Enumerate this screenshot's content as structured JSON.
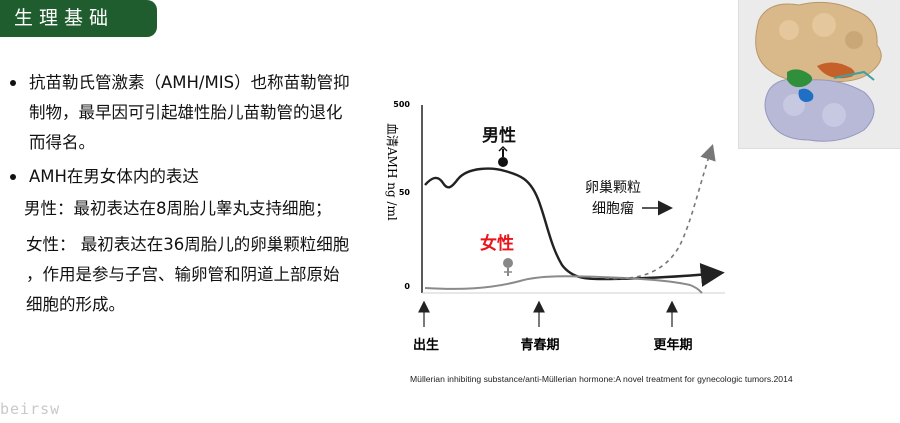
{
  "header": {
    "title": "生理基础"
  },
  "bullets": [
    {
      "text": "抗苗勒氏管激素（AMH/MIS）也称苗勒管抑制物，最早因可引起雄性胎儿苗勒管的退化而得名。",
      "lines": [
        "抗苗勒氏管激素（AMH/MIS）也称苗勒管抑",
        "制物，最早因可引起雄性胎儿苗勒管的退化",
        "而得名。"
      ]
    },
    {
      "text": "AMH在男女体内的表达"
    }
  ],
  "male_line": "男性：最初表达在8周胎儿睾丸支持细胞；",
  "female_lines": [
    "女性： 最初表达在36周胎儿的卵巢颗粒细胞",
    "，作用是参与子宫、输卵管和阴道上部原始",
    "细胞的形成。"
  ],
  "watermark": "beirsw",
  "chart_data": {
    "type": "line",
    "ylabel": "血清AMH ng /ml",
    "yticks": [
      "500",
      "50",
      "0"
    ],
    "xticks": [
      "出生",
      "青春期",
      "更年期"
    ],
    "annotations": {
      "male": "男性",
      "female": "女性",
      "tumor": "卵巢颗粒\n细胞瘤",
      "tumor_lines": [
        "卵巢颗粒",
        "细胞瘤"
      ]
    },
    "series": [
      {
        "name": "男性",
        "color": "#222222"
      },
      {
        "name": "女性",
        "color": "#888888"
      }
    ],
    "accent_color": "#e8141a"
  },
  "caption": "Müllerian inhibiting substance/anti-Müllerian hormone:A novel treatment for gynecologic tumors.2014"
}
